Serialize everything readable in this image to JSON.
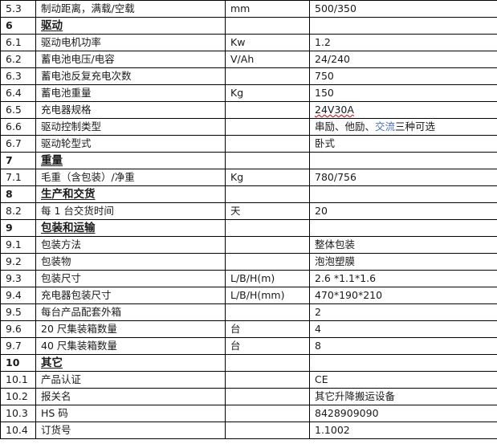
{
  "document": {
    "kind": "product-specification-table",
    "language": "zh-CN"
  },
  "colors": {
    "grid": "#000000",
    "text": "#1a1a1a",
    "highlight_blue": "#4472C4",
    "spellcheck_red": "#D40000"
  },
  "columns": {
    "no_width": 44,
    "name_width": 236,
    "unit_width": 105,
    "value_width": 234
  },
  "rows": [
    {
      "no": "5.3",
      "name": "制动距离，满载/空载",
      "unit": "mm",
      "value": "500/350",
      "section": false
    },
    {
      "no": "6",
      "name": "驱动",
      "unit": "",
      "value": "",
      "section": true
    },
    {
      "no": "6.1",
      "name": "驱动电机功率",
      "unit": "Kw",
      "value": "1.2",
      "section": false
    },
    {
      "no": "6.2",
      "name": "蓄电池电压/电容",
      "unit": "V/Ah",
      "value": "24/240",
      "section": false
    },
    {
      "no": "6.3",
      "name": "蓄电池反复充电次数",
      "unit": "",
      "value": "750",
      "section": false
    },
    {
      "no": "6.4",
      "name": "蓄电池重量",
      "unit": "Kg",
      "value": "150",
      "section": false
    },
    {
      "no": "6.5",
      "name": "充电器规格",
      "unit": "",
      "value": "24V30A",
      "section": false,
      "value_squiggle": "red"
    },
    {
      "no": "6.6",
      "name": "驱动控制类型",
      "unit": "",
      "value": "串励、他励、交流三种可选",
      "section": false,
      "value_parts": [
        {
          "text": "串励、他励、",
          "color": "default"
        },
        {
          "text": "交流",
          "color": "blue"
        },
        {
          "text": "三种可选",
          "color": "default"
        }
      ]
    },
    {
      "no": "6.7",
      "name": "驱动轮型式",
      "unit": "",
      "value": "卧式",
      "section": false
    },
    {
      "no": "7",
      "name": "重量",
      "unit": "",
      "value": "",
      "section": true
    },
    {
      "no": "7.1",
      "name": "毛重（含包装）/净重",
      "unit": "Kg",
      "value": "780/756",
      "section": false
    },
    {
      "no": "8",
      "name": "生产和交货",
      "unit": "",
      "value": "",
      "section": true
    },
    {
      "no": "8.2",
      "name": "每 1 台交货时间",
      "unit": "天",
      "value": "20",
      "section": false
    },
    {
      "no": "9",
      "name": "包装和运输",
      "unit": "",
      "value": "",
      "section": true
    },
    {
      "no": "9.1",
      "name": "包装方法",
      "unit": "",
      "value": "整体包装",
      "section": false
    },
    {
      "no": "9.2",
      "name": "包装物",
      "unit": "",
      "value": "泡泡塑膜",
      "section": false
    },
    {
      "no": "9.3",
      "name": "包装尺寸",
      "unit": "L/B/H(m)",
      "value": "2.6 *1.1*1.6",
      "section": false
    },
    {
      "no": "9.4",
      "name": "充电器包装尺寸",
      "unit": "L/B/H(mm)",
      "value": "470*190*210",
      "section": false
    },
    {
      "no": "9.5",
      "name": "每台产品配套外箱",
      "unit": "",
      "value": "2",
      "section": false
    },
    {
      "no": "9.6",
      "name": "20 尺集装箱数量",
      "unit": "台",
      "value": "4",
      "section": false
    },
    {
      "no": "9.7",
      "name": "40 尺集装箱数量",
      "unit": "台",
      "value": "8",
      "section": false
    },
    {
      "no": "10",
      "name": "其它",
      "unit": "",
      "value": "",
      "section": true
    },
    {
      "no": "10.1",
      "name": "产品认证",
      "unit": "",
      "value": "CE",
      "section": false
    },
    {
      "no": "10.2",
      "name": "报关名",
      "unit": "",
      "value": "其它升降搬运设备",
      "section": false
    },
    {
      "no": "10.3",
      "name": "HS 码",
      "unit": "",
      "value": "8428909090",
      "section": false
    },
    {
      "no": "10.4",
      "name": "订货号",
      "unit": "",
      "value": "1.1002",
      "section": false
    }
  ]
}
